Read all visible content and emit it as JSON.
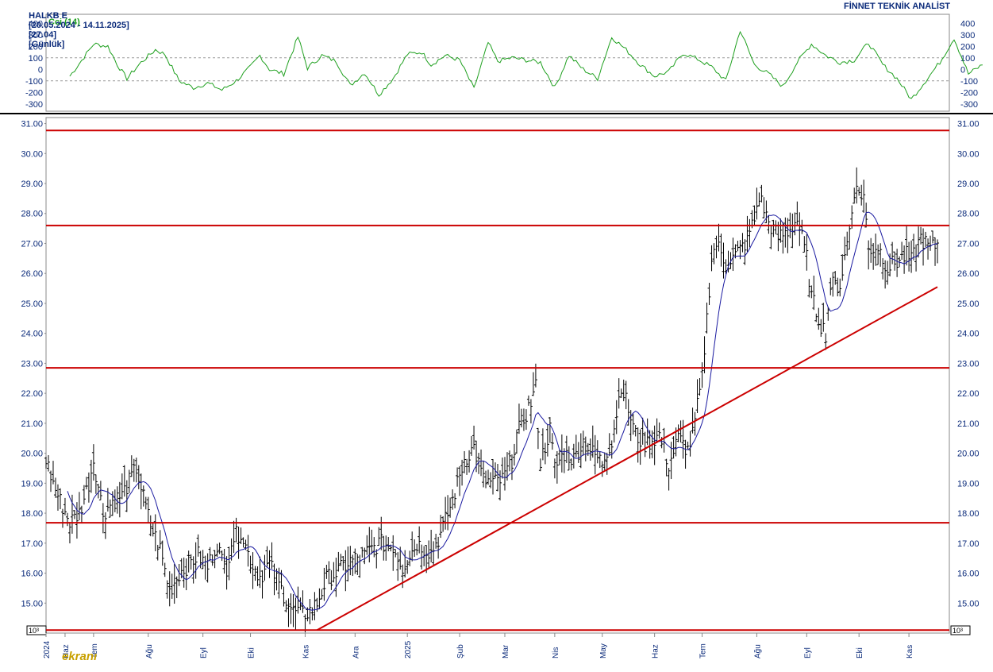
{
  "header": {
    "symbol": "HALKB E",
    "date_range": "[20.05.2024 - 14.11.2025]",
    "last_price": "[27.04]",
    "period": "[Günlük]",
    "source": "FİNNET TEKNİK ANALİST"
  },
  "watermark": "ekranı",
  "colors": {
    "price_bars": "#000000",
    "moving_average": "#1a1aa0",
    "cci_line": "#1fa01f",
    "support_resistance": "#cc0000",
    "axis_text": "#0a2a7a",
    "cci_label": "#1fa01f"
  },
  "chart_data": [
    {
      "type": "line",
      "title": "Cci (14)",
      "ylim": [
        -350,
        450
      ],
      "y_ticks": [
        "400",
        "300",
        "200",
        "100",
        "0",
        "-100",
        "-200",
        "-300"
      ],
      "reference_lines": [
        100,
        -100
      ],
      "series": [
        {
          "x": [
            0,
            4,
            10,
            16,
            20,
            24,
            30,
            36,
            40,
            46,
            52,
            58,
            64,
            70,
            76,
            80,
            84,
            90,
            96,
            100,
            106,
            112,
            118,
            124,
            130,
            136,
            142,
            148,
            152,
            158,
            164,
            170,
            176,
            180,
            186,
            192,
            198,
            204,
            210,
            216,
            222,
            228,
            234,
            240,
            246,
            252,
            258,
            264,
            270,
            276,
            282,
            288,
            294,
            300,
            306,
            312,
            318,
            324,
            330,
            336,
            342,
            348,
            354,
            360,
            366,
            372,
            378,
            384
          ],
          "values": [
            -60,
            50,
            220,
            200,
            40,
            -80,
            60,
            170,
            130,
            -100,
            -160,
            -120,
            -180,
            -100,
            20,
            120,
            0,
            -40,
            280,
            10,
            120,
            70,
            -140,
            -30,
            -220,
            -80,
            130,
            150,
            40,
            120,
            80,
            -170,
            230,
            70,
            100,
            80,
            60,
            -160,
            120,
            0,
            -80,
            280,
            170,
            40,
            -60,
            -20,
            140,
            90,
            20,
            -100,
            340,
            40,
            -40,
            -150,
            60,
            220,
            120,
            60,
            80,
            230,
            40,
            -80,
            -260,
            -100,
            60,
            270,
            -40,
            40
          ]
        }
      ]
    },
    {
      "type": "bar",
      "title": "",
      "xlabel": "",
      "ylabel": "",
      "ylim": [
        14.0,
        31.2
      ],
      "y_ticks": [
        "31.00",
        "30.00",
        "29.00",
        "28.00",
        "27.00",
        "26.00",
        "25.00",
        "24.00",
        "23.00",
        "22.00",
        "21.00",
        "20.00",
        "19.00",
        "18.00",
        "17.00",
        "16.00",
        "15.00"
      ],
      "y_scale_label": "10^3",
      "x_ticks": [
        {
          "label": "2024",
          "x": 0
        },
        {
          "label": "Haz",
          "x": 8
        },
        {
          "label": "Tem",
          "x": 20
        },
        {
          "label": "Ağu",
          "x": 43
        },
        {
          "label": "Eyl",
          "x": 66
        },
        {
          "label": "Eki",
          "x": 86
        },
        {
          "label": "Kas",
          "x": 109
        },
        {
          "label": "Ara",
          "x": 130
        },
        {
          "label": "2025",
          "x": 152
        },
        {
          "label": "Şub",
          "x": 174
        },
        {
          "label": "Mar",
          "x": 193
        },
        {
          "label": "Nis",
          "x": 214
        },
        {
          "label": "May",
          "x": 234
        },
        {
          "label": "Haz",
          "x": 256
        },
        {
          "label": "Tem",
          "x": 276
        },
        {
          "label": "Ağu",
          "x": 299
        },
        {
          "label": "Eyl",
          "x": 320
        },
        {
          "label": "Eki",
          "x": 342
        },
        {
          "label": "Kas",
          "x": 363
        }
      ],
      "horizontal_levels": [
        30.77,
        27.6,
        22.85,
        17.68,
        14.1
      ],
      "trendline": {
        "x": [
          114,
          375
        ],
        "y": [
          14.1,
          25.55
        ]
      },
      "ohlc_anchor_x": [
        0,
        3,
        6,
        10,
        14,
        18,
        20,
        24,
        28,
        32,
        36,
        38,
        42,
        44,
        48,
        52,
        56,
        60,
        64,
        68,
        72,
        74,
        76,
        78,
        82,
        86,
        90,
        94,
        98,
        102,
        104,
        106,
        108,
        112,
        114,
        118,
        122,
        128,
        134,
        140,
        146,
        150,
        152,
        156,
        162,
        166,
        170,
        172,
        176,
        180,
        184,
        188,
        192,
        196,
        198,
        204,
        206,
        208,
        212,
        214,
        218,
        222,
        226,
        230,
        234,
        236,
        238,
        242,
        248,
        252,
        258,
        262,
        266,
        270,
        272,
        276,
        278,
        280,
        282,
        286,
        290,
        294,
        298,
        300,
        304,
        308,
        312,
        316,
        320,
        322,
        326,
        328,
        330,
        334,
        338,
        340,
        344,
        346,
        350,
        354,
        358,
        362,
        364,
        368,
        372,
        375
      ],
      "ohlc_anchor_y": [
        19.8,
        19.0,
        18.4,
        17.7,
        18.0,
        19.0,
        19.8,
        18.0,
        18.4,
        18.6,
        19.2,
        19.5,
        18.2,
        17.6,
        16.8,
        15.4,
        16.0,
        16.3,
        16.6,
        16.2,
        17.0,
        16.4,
        16.2,
        17.1,
        17.4,
        16.4,
        15.9,
        16.3,
        15.6,
        15.0,
        14.7,
        14.7,
        14.6,
        14.8,
        15.0,
        15.8,
        16.0,
        16.4,
        16.6,
        17.0,
        16.9,
        16.2,
        16.5,
        17.0,
        16.7,
        17.3,
        18.2,
        18.7,
        19.8,
        20.2,
        19.1,
        19.0,
        19.1,
        19.8,
        20.6,
        21.7,
        22.2,
        19.7,
        20.8,
        19.5,
        20.0,
        19.8,
        20.4,
        20.0,
        19.7,
        20.1,
        20.4,
        22.3,
        20.6,
        20.3,
        20.6,
        19.6,
        20.5,
        20.1,
        20.6,
        22.5,
        24.5,
        26.5,
        27.0,
        26.3,
        26.6,
        27.0,
        27.8,
        28.6,
        27.7,
        27.2,
        27.4,
        27.8,
        26.5,
        25.2,
        24.3,
        24.0,
        25.6,
        25.6,
        27.5,
        28.8,
        28.6,
        26.8,
        26.9,
        26.2,
        26.4,
        26.6,
        26.4,
        27.2,
        26.8,
        27.0
      ]
    }
  ]
}
